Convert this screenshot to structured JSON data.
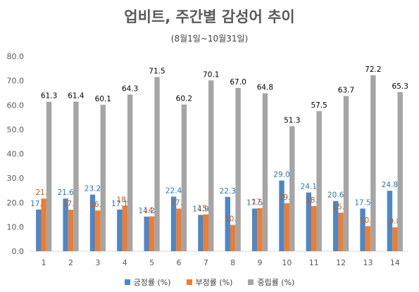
{
  "chart_data": {
    "type": "bar",
    "title": "업비트, 주간별 감성어 추이",
    "subtitle": "(8월1일~10월31일)",
    "categories": [
      "1",
      "2",
      "3",
      "4",
      "5",
      "6",
      "7",
      "8",
      "9",
      "10",
      "11",
      "12",
      "13",
      "14"
    ],
    "ylim": [
      0,
      80
    ],
    "yticks": [
      "0.0",
      "10.0",
      "20.0",
      "30.0",
      "40.0",
      "50.0",
      "60.0",
      "70.0",
      "80.0"
    ],
    "grid": false,
    "legend": "bottom",
    "series": [
      {
        "name": "긍정률 (%)",
        "color": "#4F86C6",
        "label_color": "#2E75B6",
        "values": [
          17.1,
          21.6,
          23.2,
          17.1,
          14.2,
          22.4,
          14.9,
          22.3,
          17.5,
          29.0,
          24.1,
          20.6,
          17.5,
          24.8
        ],
        "labels": [
          "17.1",
          "21.6",
          "23.2",
          "17.1",
          "14.2",
          "22.4",
          "14.9",
          "22.3",
          "17.5",
          "29.0",
          "24.1",
          "20.6",
          "17.5",
          "24.8"
        ]
      },
      {
        "name": "부정률 (%)",
        "color": "#ED7D31",
        "label_color": "#C55A11",
        "values": [
          21.6,
          17.0,
          16.7,
          18.7,
          14.3,
          17.5,
          15.1,
          10.8,
          17.7,
          19.7,
          18.5,
          15.8,
          10.3,
          9.8
        ],
        "labels": [
          "21.6",
          "17.0",
          "16.7",
          "18.7",
          "14.3",
          "17.5",
          "15.1",
          "10.8",
          "17.7",
          "19.7",
          "18.5",
          "15.8",
          "10.3",
          "9.8"
        ]
      },
      {
        "name": "중립률 (%)",
        "color": "#A5A5A5",
        "label_color": "#000000",
        "values": [
          61.3,
          61.4,
          60.1,
          64.3,
          71.5,
          60.2,
          70.1,
          67.0,
          64.8,
          51.3,
          57.5,
          63.7,
          72.2,
          65.3
        ],
        "labels": [
          "61.3",
          "61.4",
          "60.1",
          "64.3",
          "71.5",
          "60.2",
          "70.1",
          "67.0",
          "64.8",
          "51.3",
          "57.5",
          "63.7",
          "72.2",
          "65.3"
        ]
      }
    ]
  }
}
